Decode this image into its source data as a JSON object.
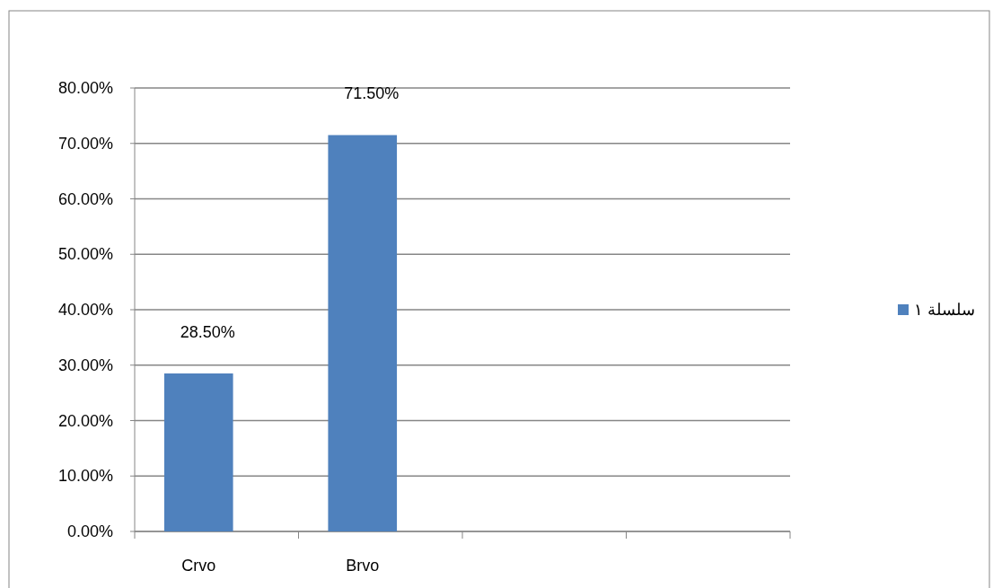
{
  "chart_data": {
    "type": "bar",
    "categories": [
      "Crvo",
      "Brvo",
      null,
      null
    ],
    "series": [
      {
        "name": "سلسلة ١",
        "color": "#4f81bd",
        "values": [
          28.5,
          71.5,
          null,
          null
        ],
        "value_labels": [
          "28.50%",
          "71.50%",
          null,
          null
        ]
      }
    ],
    "ylim": [
      0,
      80
    ],
    "yticks": [
      {
        "value": 0,
        "label": "0.00%"
      },
      {
        "value": 10,
        "label": "10.00%"
      },
      {
        "value": 20,
        "label": "20.00%"
      },
      {
        "value": 30,
        "label": "30.00%"
      },
      {
        "value": 40,
        "label": "40.00%"
      },
      {
        "value": 50,
        "label": "50.00%"
      },
      {
        "value": 60,
        "label": "60.00%"
      },
      {
        "value": 70,
        "label": "70.00%"
      },
      {
        "value": 80,
        "label": "80.00%"
      }
    ],
    "grid": "y",
    "legend": "right"
  }
}
